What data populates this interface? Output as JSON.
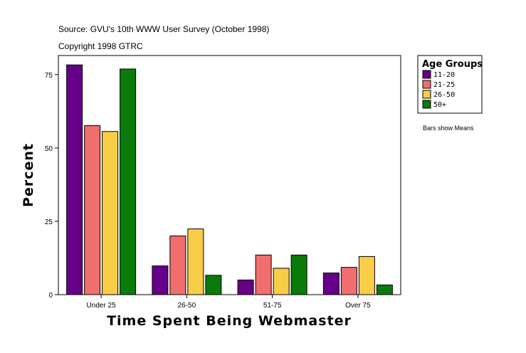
{
  "source_line": "Source: GVU's 10th WWW User Survey (October 1998)",
  "copyright_line": "Copyright 1998 GTRC",
  "note": "Bars show Means",
  "chart_data": {
    "type": "bar",
    "title": "",
    "xlabel": "Time Spent Being Webmaster",
    "ylabel": "Percent",
    "categories": [
      "Under 25",
      "26-50",
      "51-75",
      "Over 75"
    ],
    "yticks": [
      0,
      25,
      50,
      75
    ],
    "ylim": [
      0,
      81.5
    ],
    "grid": false,
    "legend_title": "Age Groups",
    "legend_position": "top-right, outside plot",
    "series": [
      {
        "name": "11-20",
        "color": "#660089",
        "values": [
          78.3,
          9.8,
          5.0,
          7.4
        ]
      },
      {
        "name": "21-25",
        "color": "#f06e6e",
        "values": [
          57.6,
          20.0,
          13.5,
          9.3
        ]
      },
      {
        "name": "26-50",
        "color": "#f8cd48",
        "values": [
          55.6,
          22.4,
          9.0,
          13.0
        ]
      },
      {
        "name": "50+",
        "color": "#0a7b0a",
        "values": [
          76.9,
          6.6,
          13.5,
          3.3
        ]
      }
    ]
  }
}
